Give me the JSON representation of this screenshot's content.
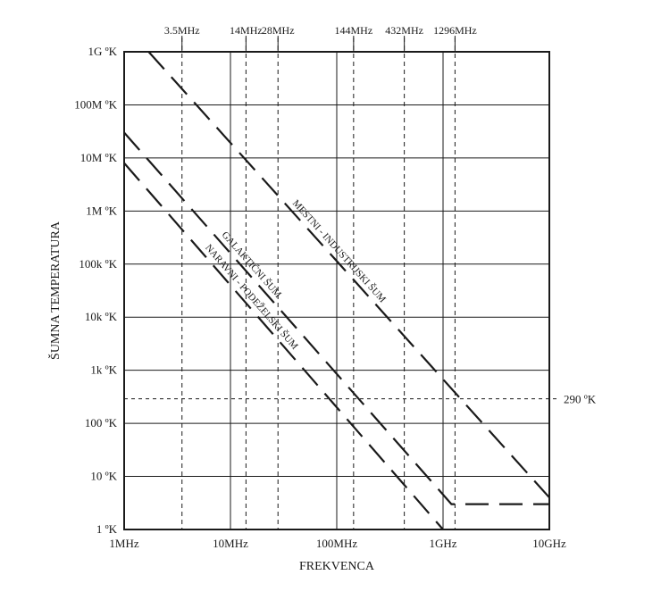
{
  "chart_data": {
    "type": "line",
    "title": "",
    "xlabel": "FREKVENCA",
    "ylabel": "ŠUMNA TEMPERATURA",
    "x_scale": "log",
    "y_scale": "log",
    "xlim_hz": [
      1000000.0,
      10000000000.0
    ],
    "ylim_k": [
      1,
      1000000000.0
    ],
    "grid": true,
    "x_ticks": [
      {
        "value": 1000000.0,
        "label": "1MHz"
      },
      {
        "value": 10000000.0,
        "label": "10MHz"
      },
      {
        "value": 100000000.0,
        "label": "100MHz"
      },
      {
        "value": 1000000000.0,
        "label": "1GHz"
      },
      {
        "value": 10000000000.0,
        "label": "10GHz"
      }
    ],
    "y_ticks": [
      {
        "value": 1,
        "label": "1 ºK"
      },
      {
        "value": 10,
        "label": "10 ºK"
      },
      {
        "value": 100,
        "label": "100 ºK"
      },
      {
        "value": 1000,
        "label": "1k ºK"
      },
      {
        "value": 10000,
        "label": "10k ºK"
      },
      {
        "value": 100000,
        "label": "100k ºK"
      },
      {
        "value": 1000000,
        "label": "1M ºK"
      },
      {
        "value": 10000000,
        "label": "10M ºK"
      },
      {
        "value": 100000000,
        "label": "100M ºK"
      },
      {
        "value": 1000000000,
        "label": "1G ºK"
      }
    ],
    "band_markers": [
      {
        "value": 3500000.0,
        "label": "3.5MHz"
      },
      {
        "value": 14000000.0,
        "label": "14MHz"
      },
      {
        "value": 28000000.0,
        "label": "28MHz"
      },
      {
        "value": 144000000.0,
        "label": "144MHz"
      },
      {
        "value": 432000000.0,
        "label": "432MHz"
      },
      {
        "value": 1296000000.0,
        "label": "1296MHz"
      }
    ],
    "reference_line": {
      "value": 290,
      "label": "290 ºK"
    },
    "series": [
      {
        "name": "MESTNI - INDUSTRIJSKI ŠUM",
        "x": [
          1700000.0,
          10000000000.0
        ],
        "y": [
          1000000000.0,
          4
        ]
      },
      {
        "name": "GALAKTIČNI ŠUM",
        "x": [
          1000000.0,
          1200000000.0,
          1200000000.0,
          10000000000.0
        ],
        "y": [
          30000000.0,
          3,
          3,
          3
        ]
      },
      {
        "name": "NARAVNI - PODEŽELSKI ŠUM",
        "x": [
          1000000.0,
          1000000000.0
        ],
        "y": [
          8000000.0,
          1
        ]
      }
    ]
  }
}
